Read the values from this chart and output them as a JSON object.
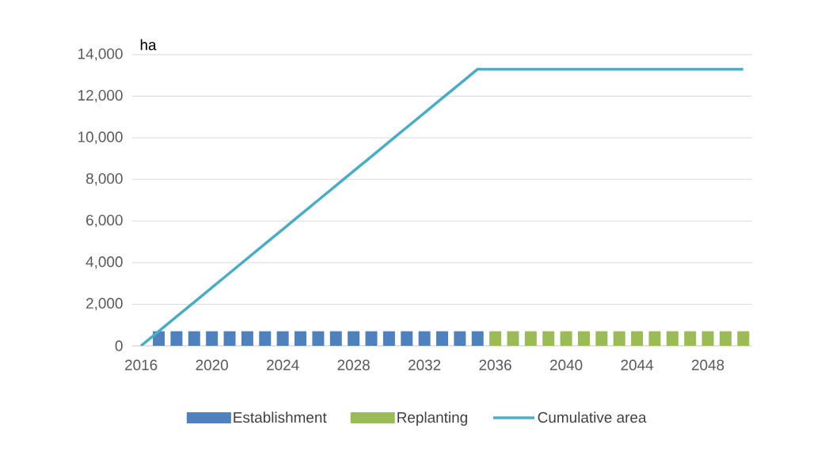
{
  "chart_data": {
    "type": "bar",
    "ylabel": "ha",
    "categories": [
      "2016",
      null,
      null,
      null,
      "2020",
      null,
      null,
      null,
      "2024",
      null,
      null,
      null,
      "2028",
      null,
      null,
      null,
      "2032",
      null,
      null,
      null,
      "2036",
      null,
      null,
      null,
      "2040",
      null,
      null,
      null,
      "2044",
      null,
      null,
      null,
      "2048",
      null,
      null
    ],
    "series": [
      {
        "name": "Establishment",
        "color": "#4f81bd",
        "values": [
          null,
          700,
          700,
          700,
          700,
          700,
          700,
          700,
          700,
          700,
          700,
          700,
          700,
          700,
          700,
          700,
          700,
          700,
          700,
          700,
          null,
          null,
          null,
          null,
          null,
          null,
          null,
          null,
          null,
          null,
          null,
          null,
          null,
          null,
          null
        ]
      },
      {
        "name": "Replanting",
        "color": "#9bbb59",
        "values": [
          null,
          null,
          null,
          null,
          null,
          null,
          null,
          null,
          null,
          null,
          null,
          null,
          null,
          null,
          null,
          null,
          null,
          null,
          null,
          null,
          700,
          700,
          700,
          700,
          700,
          700,
          700,
          700,
          700,
          700,
          700,
          700,
          700,
          700,
          700
        ]
      },
      {
        "name": "Cumulative area",
        "type": "line",
        "color": "#4bacc6",
        "values": [
          0,
          700,
          1400,
          2100,
          2800,
          3500,
          4200,
          4900,
          5600,
          6300,
          7000,
          7700,
          8400,
          9100,
          9800,
          10500,
          11200,
          11900,
          12600,
          13300,
          13300,
          13300,
          13300,
          13300,
          13300,
          13300,
          13300,
          13300,
          13300,
          13300,
          13300,
          13300,
          13300,
          13300,
          13300
        ]
      }
    ],
    "ylim": [
      0,
      14000
    ],
    "yticks": [
      {
        "value": 0,
        "label": "0"
      },
      {
        "value": 2000,
        "label": "2,000"
      },
      {
        "value": 4000,
        "label": "4,000"
      },
      {
        "value": 6000,
        "label": "6,000"
      },
      {
        "value": 8000,
        "label": "8,000"
      },
      {
        "value": 10000,
        "label": "10,000"
      },
      {
        "value": 12000,
        "label": "12,000"
      },
      {
        "value": 14000,
        "label": "14,000"
      }
    ],
    "grid": "y",
    "legend": "bottom"
  }
}
